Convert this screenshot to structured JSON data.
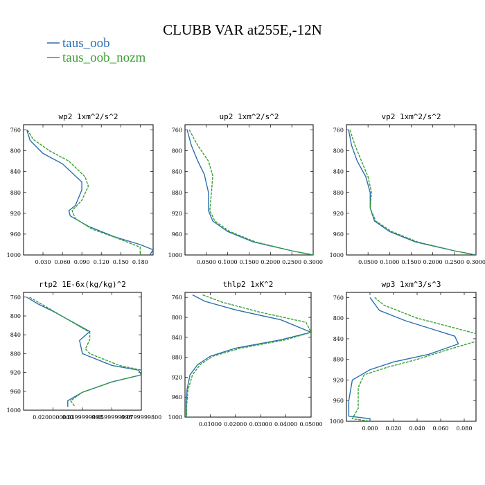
{
  "figure": {
    "title": "CLUBB VAR at255E,-12N",
    "colors": {
      "taus_oob": "#2a6fb0",
      "taus_oob_nozm": "#3aa035"
    }
  },
  "chart_data": [
    {
      "type": "line",
      "title": "wp2  1xm^2/s^2",
      "ylim": [
        1000,
        750
      ],
      "yticks": [
        760,
        800,
        840,
        880,
        920,
        960,
        1000
      ],
      "xlim": [
        0.0,
        0.2
      ],
      "xticks": [
        0.03,
        0.06,
        0.09,
        0.12,
        0.15,
        0.18
      ],
      "xtick_labels": [
        "0.030",
        "0.060",
        "0.090",
        "0.120",
        "0.150",
        "0.180"
      ],
      "series": [
        {
          "name": "taus_oob",
          "points": [
            [
              0.005,
              760
            ],
            [
              0.01,
              780
            ],
            [
              0.03,
              805
            ],
            [
              0.06,
              825
            ],
            [
              0.09,
              860
            ],
            [
              0.09,
              875
            ],
            [
              0.08,
              905
            ],
            [
              0.07,
              915
            ],
            [
              0.072,
              925
            ],
            [
              0.1,
              945
            ],
            [
              0.14,
              965
            ],
            [
              0.18,
              980
            ],
            [
              0.2,
              990
            ],
            [
              0.195,
              1000
            ]
          ]
        },
        {
          "name": "taus_oob_nozm",
          "points": [
            [
              0.006,
              760
            ],
            [
              0.015,
              778
            ],
            [
              0.04,
              800
            ],
            [
              0.07,
              820
            ],
            [
              0.095,
              850
            ],
            [
              0.1,
              868
            ],
            [
              0.09,
              895
            ],
            [
              0.075,
              915
            ],
            [
              0.08,
              930
            ],
            [
              0.105,
              950
            ],
            [
              0.145,
              968
            ],
            [
              0.18,
              985
            ],
            [
              0.18,
              1000
            ]
          ]
        }
      ]
    },
    {
      "type": "line",
      "title": "up2  1xm^2/s^2",
      "ylim": [
        1000,
        750
      ],
      "yticks": [
        760,
        800,
        840,
        880,
        920,
        960,
        1000
      ],
      "xlim": [
        0.0,
        0.3
      ],
      "xticks": [
        0.05,
        0.1,
        0.15,
        0.2,
        0.25,
        0.3
      ],
      "xtick_labels": [
        "0.0500",
        "0.1000",
        "0.1500",
        "0.2000",
        "0.2500",
        "0.3000"
      ],
      "series": [
        {
          "name": "taus_oob",
          "points": [
            [
              0.005,
              760
            ],
            [
              0.015,
              790
            ],
            [
              0.03,
              820
            ],
            [
              0.045,
              845
            ],
            [
              0.055,
              880
            ],
            [
              0.055,
              915
            ],
            [
              0.065,
              935
            ],
            [
              0.1,
              955
            ],
            [
              0.16,
              975
            ],
            [
              0.25,
              992
            ],
            [
              0.3,
              1000
            ]
          ]
        },
        {
          "name": "taus_oob_nozm",
          "points": [
            [
              0.01,
              760
            ],
            [
              0.03,
              790
            ],
            [
              0.055,
              820
            ],
            [
              0.065,
              848
            ],
            [
              0.062,
              880
            ],
            [
              0.058,
              915
            ],
            [
              0.07,
              935
            ],
            [
              0.105,
              955
            ],
            [
              0.165,
              975
            ],
            [
              0.25,
              992
            ],
            [
              0.3,
              1000
            ]
          ]
        }
      ]
    },
    {
      "type": "line",
      "title": "vp2  1xm^2/s^2",
      "ylim": [
        1000,
        750
      ],
      "yticks": [
        760,
        800,
        840,
        880,
        920,
        960,
        1000
      ],
      "xlim": [
        0.0,
        0.3
      ],
      "xticks": [
        0.05,
        0.1,
        0.15,
        0.2,
        0.25,
        0.3
      ],
      "xtick_labels": [
        "0.0500",
        "0.1000",
        "0.1500",
        "0.2000",
        "0.2500",
        "0.3000"
      ],
      "series": [
        {
          "name": "taus_oob",
          "points": [
            [
              0.005,
              760
            ],
            [
              0.012,
              790
            ],
            [
              0.025,
              820
            ],
            [
              0.045,
              850
            ],
            [
              0.055,
              880
            ],
            [
              0.055,
              910
            ],
            [
              0.065,
              935
            ],
            [
              0.1,
              955
            ],
            [
              0.16,
              975
            ],
            [
              0.25,
              992
            ],
            [
              0.3,
              1000
            ]
          ]
        },
        {
          "name": "taus_oob_nozm",
          "points": [
            [
              0.008,
              760
            ],
            [
              0.02,
              790
            ],
            [
              0.035,
              820
            ],
            [
              0.05,
              850
            ],
            [
              0.058,
              880
            ],
            [
              0.055,
              910
            ],
            [
              0.068,
              935
            ],
            [
              0.105,
              955
            ],
            [
              0.165,
              975
            ],
            [
              0.25,
              992
            ],
            [
              0.3,
              1000
            ]
          ]
        }
      ]
    },
    {
      "type": "line",
      "title": "rtp2  1E-6x(kg/kg)^2",
      "ylim": [
        1000,
        750
      ],
      "yticks": [
        760,
        800,
        840,
        880,
        920,
        960,
        1000
      ],
      "xlim": [
        0.0,
        0.08
      ],
      "xticks": [
        0.02,
        0.04,
        0.06,
        0.08
      ],
      "xtick_labels": [
        "0.0200000000",
        "0.0399999998",
        "0.0599999998",
        "0.0799999800"
      ],
      "series": [
        {
          "name": "taus_oob",
          "points": [
            [
              0.002,
              760
            ],
            [
              0.01,
              775
            ],
            [
              0.02,
              790
            ],
            [
              0.045,
              833
            ],
            [
              0.038,
              852
            ],
            [
              0.04,
              880
            ],
            [
              0.06,
              905
            ],
            [
              0.078,
              915
            ],
            [
              0.08,
              925
            ],
            [
              0.06,
              940
            ],
            [
              0.04,
              962
            ],
            [
              0.03,
              980
            ],
            [
              0.03,
              993
            ]
          ]
        },
        {
          "name": "taus_oob_nozm",
          "points": [
            [
              0.004,
              760
            ],
            [
              0.015,
              780
            ],
            [
              0.045,
              835
            ],
            [
              0.045,
              850
            ],
            [
              0.042,
              870
            ],
            [
              0.045,
              880
            ],
            [
              0.065,
              905
            ],
            [
              0.08,
              915
            ],
            [
              0.08,
              925
            ],
            [
              0.06,
              940
            ],
            [
              0.04,
              962
            ],
            [
              0.032,
              980
            ],
            [
              0.035,
              993
            ]
          ]
        }
      ]
    },
    {
      "type": "line",
      "title": "thlp2  1xK^2",
      "ylim": [
        1000,
        750
      ],
      "yticks": [
        760,
        800,
        840,
        880,
        920,
        960,
        1000
      ],
      "xlim": [
        0.0,
        0.05
      ],
      "xticks": [
        0.01,
        0.02,
        0.03,
        0.04,
        0.05
      ],
      "xtick_labels": [
        "0.01000",
        "0.02000",
        "0.03000",
        "0.04000",
        "0.05000"
      ],
      "series": [
        {
          "name": "taus_oob",
          "points": [
            [
              0.003,
              755
            ],
            [
              0.008,
              768
            ],
            [
              0.02,
              785
            ],
            [
              0.038,
              805
            ],
            [
              0.05,
              830
            ],
            [
              0.038,
              845
            ],
            [
              0.02,
              862
            ],
            [
              0.01,
              878
            ],
            [
              0.005,
              895
            ],
            [
              0.002,
              915
            ],
            [
              0.0008,
              945
            ],
            [
              0.0005,
              975
            ],
            [
              0.0005,
              1000
            ]
          ]
        },
        {
          "name": "taus_oob_nozm",
          "points": [
            [
              0.007,
              755
            ],
            [
              0.015,
              770
            ],
            [
              0.03,
              790
            ],
            [
              0.048,
              810
            ],
            [
              0.05,
              830
            ],
            [
              0.04,
              845
            ],
            [
              0.022,
              862
            ],
            [
              0.011,
              878
            ],
            [
              0.006,
              895
            ],
            [
              0.003,
              915
            ],
            [
              0.0012,
              945
            ],
            [
              0.0007,
              975
            ],
            [
              0.0006,
              1000
            ]
          ]
        }
      ]
    },
    {
      "type": "line",
      "title": "wp3  1xm^3/s^3",
      "ylim": [
        1000,
        750
      ],
      "yticks": [
        760,
        800,
        840,
        880,
        920,
        960,
        1000
      ],
      "xlim": [
        -0.02,
        0.09
      ],
      "xticks": [
        0.0,
        0.02,
        0.04,
        0.06,
        0.08
      ],
      "xtick_labels": [
        "0.000",
        "0.020",
        "0.040",
        "0.060",
        "0.080"
      ],
      "series": [
        {
          "name": "taus_oob",
          "points": [
            [
              0.0,
              760
            ],
            [
              0.008,
              785
            ],
            [
              0.03,
              805
            ],
            [
              0.072,
              835
            ],
            [
              0.075,
              850
            ],
            [
              0.05,
              870
            ],
            [
              0.02,
              885
            ],
            [
              0.0,
              900
            ],
            [
              -0.015,
              920
            ],
            [
              -0.018,
              960
            ],
            [
              -0.018,
              990
            ],
            [
              0.0,
              995
            ],
            [
              0.0,
              1000
            ]
          ]
        },
        {
          "name": "taus_oob_nozm",
          "points": [
            [
              0.004,
              760
            ],
            [
              0.012,
              775
            ],
            [
              0.04,
              800
            ],
            [
              0.09,
              830
            ],
            [
              0.09,
              845
            ],
            [
              0.065,
              862
            ],
            [
              0.04,
              880
            ],
            [
              0.015,
              895
            ],
            [
              -0.005,
              910
            ],
            [
              -0.01,
              935
            ],
            [
              -0.01,
              975
            ],
            [
              -0.015,
              995
            ],
            [
              0.0,
              1000
            ]
          ]
        }
      ]
    }
  ]
}
